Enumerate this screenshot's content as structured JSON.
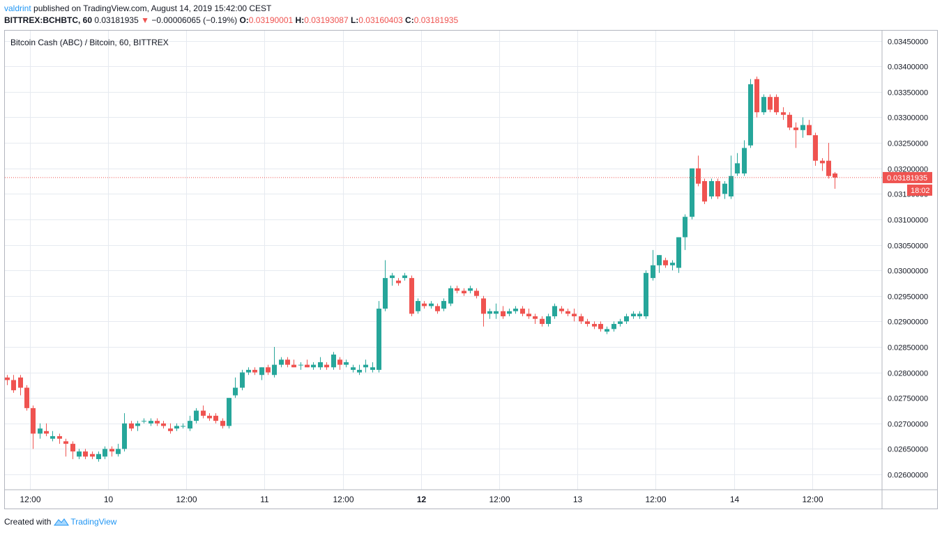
{
  "header": {
    "author": "valdrint",
    "published": "published on TradingView.com, August 14, 2019 15:42:00 CEST",
    "symbol": "BITTREX:BCHBTC, 60",
    "last": "0.03181935",
    "change_arrow": "▼",
    "change": "−0.00006065 (−0.19%)",
    "o_label": "O:",
    "o_value": "0.03190001",
    "h_label": "H:",
    "h_value": "0.03193087",
    "l_label": "L:",
    "l_value": "0.03160403",
    "c_label": "C:",
    "c_value": "0.03181935"
  },
  "footer": {
    "created": "Created with",
    "brand": "TradingView"
  },
  "chart_data": {
    "type": "candlestick",
    "title": "Bitcoin Cash (ABC) / Bitcoin, 60, BITTREX",
    "ylim": [
      0.0257,
      0.0347
    ],
    "yticks": [
      0.026,
      0.0265,
      0.027,
      0.0275,
      0.028,
      0.0285,
      0.029,
      0.0295,
      0.03,
      0.0305,
      0.031,
      0.0315,
      0.032,
      0.0325,
      0.033,
      0.0335,
      0.034,
      0.0345
    ],
    "ytick_labels": [
      "0.02600000",
      "0.02650000",
      "0.02700000",
      "0.02750000",
      "0.02800000",
      "0.02850000",
      "0.02900000",
      "0.02950000",
      "0.03000000",
      "0.03050000",
      "0.03100000",
      "0.03150000",
      "0.03200000",
      "0.03250000",
      "0.03300000",
      "0.03350000",
      "0.03400000",
      "0.03450000"
    ],
    "xticks": [
      {
        "label": "12:00",
        "bold": false,
        "index": 3.5
      },
      {
        "label": "10",
        "bold": false,
        "index": 15.5
      },
      {
        "label": "12:00",
        "bold": false,
        "index": 27.5
      },
      {
        "label": "11",
        "bold": false,
        "index": 39.5
      },
      {
        "label": "12:00",
        "bold": false,
        "index": 51.5
      },
      {
        "label": "12",
        "bold": true,
        "index": 63.5
      },
      {
        "label": "12:00",
        "bold": false,
        "index": 75.5
      },
      {
        "label": "13",
        "bold": false,
        "index": 87.5
      },
      {
        "label": "12:00",
        "bold": false,
        "index": 99.5
      },
      {
        "label": "14",
        "bold": false,
        "index": 111.5
      },
      {
        "label": "12:00",
        "bold": false,
        "index": 123.5
      }
    ],
    "last_price": 0.03181935,
    "last_price_label": "0.03181935",
    "countdown": "18:02",
    "up_color": "#26a69a",
    "down_color": "#ef5350",
    "candles": [
      [
        0.0279,
        0.02795,
        0.02775,
        0.02785
      ],
      [
        0.02785,
        0.02795,
        0.0276,
        0.02765
      ],
      [
        0.0279,
        0.02795,
        0.02755,
        0.0277
      ],
      [
        0.0277,
        0.02775,
        0.02725,
        0.0273
      ],
      [
        0.0273,
        0.02735,
        0.0265,
        0.0268
      ],
      [
        0.0268,
        0.027,
        0.0267,
        0.0269
      ],
      [
        0.02685,
        0.027,
        0.02675,
        0.0268
      ],
      [
        0.0267,
        0.02685,
        0.02665,
        0.02675
      ],
      [
        0.02675,
        0.0268,
        0.0266,
        0.0267
      ],
      [
        0.02665,
        0.0267,
        0.02635,
        0.0266
      ],
      [
        0.0266,
        0.02665,
        0.0263,
        0.02645
      ],
      [
        0.02635,
        0.0265,
        0.0263,
        0.02645
      ],
      [
        0.02645,
        0.0265,
        0.0263,
        0.02635
      ],
      [
        0.0264,
        0.02645,
        0.0263,
        0.02635
      ],
      [
        0.0263,
        0.02645,
        0.02625,
        0.0264
      ],
      [
        0.02635,
        0.02655,
        0.0263,
        0.0265
      ],
      [
        0.0265,
        0.02655,
        0.02635,
        0.02645
      ],
      [
        0.0264,
        0.0266,
        0.02635,
        0.0265
      ],
      [
        0.0265,
        0.0272,
        0.02645,
        0.027
      ],
      [
        0.027,
        0.02705,
        0.02685,
        0.0269
      ],
      [
        0.02695,
        0.02705,
        0.02685,
        0.027
      ],
      [
        0.02705,
        0.0271,
        0.027,
        0.02705
      ],
      [
        0.027,
        0.0271,
        0.02695,
        0.02705
      ],
      [
        0.02705,
        0.0271,
        0.02695,
        0.027
      ],
      [
        0.027,
        0.02705,
        0.0269,
        0.02695
      ],
      [
        0.0269,
        0.027,
        0.0268,
        0.02685
      ],
      [
        0.0269,
        0.027,
        0.02685,
        0.02695
      ],
      [
        0.02695,
        0.027,
        0.0269,
        0.02695
      ],
      [
        0.0269,
        0.02715,
        0.02685,
        0.02705
      ],
      [
        0.02705,
        0.0273,
        0.027,
        0.02725
      ],
      [
        0.02725,
        0.02735,
        0.0271,
        0.02715
      ],
      [
        0.02715,
        0.0272,
        0.02705,
        0.0271
      ],
      [
        0.02715,
        0.0272,
        0.027,
        0.02705
      ],
      [
        0.02705,
        0.0271,
        0.0269,
        0.02695
      ],
      [
        0.02695,
        0.0275,
        0.0269,
        0.0275
      ],
      [
        0.02755,
        0.0279,
        0.0275,
        0.0277
      ],
      [
        0.0277,
        0.02805,
        0.02765,
        0.028
      ],
      [
        0.028,
        0.0281,
        0.02795,
        0.02805
      ],
      [
        0.02805,
        0.0281,
        0.02795,
        0.028
      ],
      [
        0.02795,
        0.0281,
        0.02785,
        0.0281
      ],
      [
        0.0281,
        0.02815,
        0.02795,
        0.028
      ],
      [
        0.02795,
        0.0285,
        0.0279,
        0.02815
      ],
      [
        0.02815,
        0.0283,
        0.0281,
        0.02825
      ],
      [
        0.02825,
        0.0283,
        0.0281,
        0.02815
      ],
      [
        0.02815,
        0.02825,
        0.0281,
        0.0281
      ],
      [
        0.02815,
        0.0282,
        0.02805,
        0.02815
      ],
      [
        0.02815,
        0.02825,
        0.0281,
        0.0281
      ],
      [
        0.0281,
        0.0282,
        0.02805,
        0.02815
      ],
      [
        0.0281,
        0.0283,
        0.02805,
        0.0282
      ],
      [
        0.02815,
        0.0282,
        0.02805,
        0.0281
      ],
      [
        0.0281,
        0.0284,
        0.02805,
        0.02835
      ],
      [
        0.02825,
        0.0283,
        0.02805,
        0.02815
      ],
      [
        0.02815,
        0.02825,
        0.0281,
        0.0282
      ],
      [
        0.02805,
        0.02815,
        0.028,
        0.0281
      ],
      [
        0.028,
        0.02815,
        0.02795,
        0.02805
      ],
      [
        0.0281,
        0.02825,
        0.028,
        0.02815
      ],
      [
        0.02805,
        0.0282,
        0.028,
        0.0281
      ],
      [
        0.02805,
        0.0294,
        0.028,
        0.02925
      ],
      [
        0.02925,
        0.0302,
        0.0292,
        0.02985
      ],
      [
        0.02985,
        0.02995,
        0.0297,
        0.0299
      ],
      [
        0.0298,
        0.02985,
        0.0297,
        0.02975
      ],
      [
        0.02985,
        0.02995,
        0.0298,
        0.0299
      ],
      [
        0.02985,
        0.0299,
        0.0291,
        0.02915
      ],
      [
        0.0292,
        0.02945,
        0.02915,
        0.0294
      ],
      [
        0.02935,
        0.0294,
        0.02925,
        0.0293
      ],
      [
        0.0293,
        0.0294,
        0.02925,
        0.02935
      ],
      [
        0.0293,
        0.02935,
        0.02915,
        0.0292
      ],
      [
        0.02925,
        0.02945,
        0.0292,
        0.0294
      ],
      [
        0.02935,
        0.0297,
        0.0293,
        0.02965
      ],
      [
        0.02965,
        0.0297,
        0.02955,
        0.0296
      ],
      [
        0.0296,
        0.02965,
        0.0295,
        0.02955
      ],
      [
        0.0296,
        0.0297,
        0.02955,
        0.02965
      ],
      [
        0.0296,
        0.02965,
        0.02945,
        0.0295
      ],
      [
        0.02945,
        0.0295,
        0.0289,
        0.02915
      ],
      [
        0.02915,
        0.02925,
        0.02905,
        0.0292
      ],
      [
        0.02915,
        0.02935,
        0.02905,
        0.0292
      ],
      [
        0.0292,
        0.0293,
        0.02905,
        0.0291
      ],
      [
        0.02915,
        0.02925,
        0.0291,
        0.0292
      ],
      [
        0.0292,
        0.0293,
        0.02915,
        0.02925
      ],
      [
        0.02925,
        0.0293,
        0.0291,
        0.02915
      ],
      [
        0.02915,
        0.02925,
        0.02905,
        0.0291
      ],
      [
        0.0291,
        0.02915,
        0.02895,
        0.02905
      ],
      [
        0.02905,
        0.0291,
        0.0289,
        0.02895
      ],
      [
        0.02895,
        0.02915,
        0.0289,
        0.0291
      ],
      [
        0.0291,
        0.02935,
        0.02905,
        0.0293
      ],
      [
        0.02925,
        0.0293,
        0.02915,
        0.0292
      ],
      [
        0.0292,
        0.02925,
        0.0291,
        0.02915
      ],
      [
        0.02915,
        0.02925,
        0.029,
        0.0291
      ],
      [
        0.0291,
        0.02915,
        0.02895,
        0.029
      ],
      [
        0.029,
        0.02905,
        0.0289,
        0.02895
      ],
      [
        0.02895,
        0.029,
        0.02885,
        0.0289
      ],
      [
        0.02895,
        0.029,
        0.0288,
        0.02885
      ],
      [
        0.0288,
        0.0289,
        0.02875,
        0.02885
      ],
      [
        0.02885,
        0.029,
        0.0288,
        0.02895
      ],
      [
        0.02895,
        0.02905,
        0.0289,
        0.029
      ],
      [
        0.029,
        0.02915,
        0.02895,
        0.0291
      ],
      [
        0.0291,
        0.0292,
        0.02905,
        0.02915
      ],
      [
        0.0291,
        0.0292,
        0.02905,
        0.02915
      ],
      [
        0.0291,
        0.03,
        0.02905,
        0.02995
      ],
      [
        0.02985,
        0.0304,
        0.0298,
        0.0301
      ],
      [
        0.0301,
        0.0303,
        0.02995,
        0.0303
      ],
      [
        0.0302,
        0.03025,
        0.03005,
        0.0301
      ],
      [
        0.0301,
        0.0302,
        0.03,
        0.03015
      ],
      [
        0.03005,
        0.03065,
        0.02995,
        0.03065
      ],
      [
        0.03065,
        0.0311,
        0.0304,
        0.03105
      ],
      [
        0.03105,
        0.032,
        0.031,
        0.032
      ],
      [
        0.032,
        0.03225,
        0.03165,
        0.0317
      ],
      [
        0.03175,
        0.0318,
        0.0313,
        0.03135
      ],
      [
        0.03145,
        0.0318,
        0.0314,
        0.03175
      ],
      [
        0.03175,
        0.0318,
        0.0314,
        0.03145
      ],
      [
        0.0315,
        0.03175,
        0.0314,
        0.0317
      ],
      [
        0.03145,
        0.03225,
        0.0314,
        0.03185
      ],
      [
        0.0319,
        0.0323,
        0.03185,
        0.0321
      ],
      [
        0.0319,
        0.03255,
        0.03185,
        0.0324
      ],
      [
        0.03245,
        0.03375,
        0.0324,
        0.03365
      ],
      [
        0.03375,
        0.0338,
        0.033,
        0.0331
      ],
      [
        0.0331,
        0.03345,
        0.03305,
        0.0334
      ],
      [
        0.0334,
        0.03345,
        0.0331,
        0.03315
      ],
      [
        0.0334,
        0.03345,
        0.03305,
        0.0331
      ],
      [
        0.0331,
        0.0332,
        0.03295,
        0.03305
      ],
      [
        0.03305,
        0.0331,
        0.03275,
        0.0328
      ],
      [
        0.0328,
        0.0329,
        0.0324,
        0.03275
      ],
      [
        0.03275,
        0.033,
        0.0326,
        0.03285
      ],
      [
        0.03285,
        0.03295,
        0.03265,
        0.03265
      ],
      [
        0.03265,
        0.0327,
        0.03205,
        0.03215
      ],
      [
        0.03215,
        0.0322,
        0.03195,
        0.0321
      ],
      [
        0.03215,
        0.0325,
        0.0318,
        0.03185
      ],
      [
        0.0319,
        0.03193,
        0.0316,
        0.03182
      ]
    ]
  }
}
